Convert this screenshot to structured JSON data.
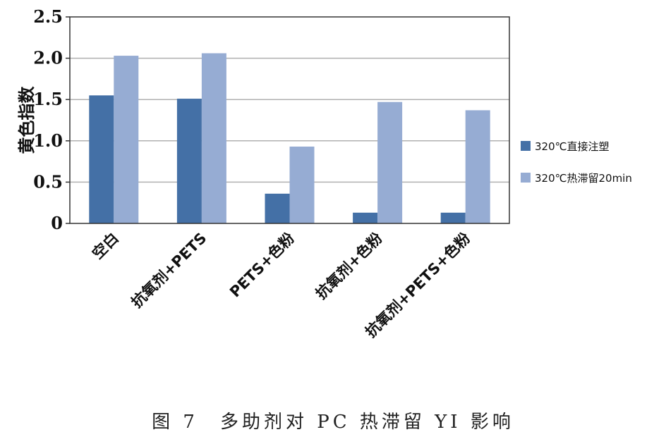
{
  "caption": "图 7　多助剂对 PC 热滞留 YI 影响",
  "colors": {
    "series1": "#4470a6",
    "series2": "#96acd3",
    "grid": "#b0b0b0",
    "frame": "#333333"
  },
  "chart_data": {
    "type": "bar",
    "title": "",
    "xlabel": "",
    "ylabel": "黄色指数",
    "ylim": [
      0,
      2.5
    ],
    "yticks": [
      0,
      0.5,
      1.0,
      1.5,
      2.0,
      2.5
    ],
    "ytick_labels": [
      "0",
      "0.5",
      "1.0",
      "1.5",
      "2.0",
      "2.5"
    ],
    "grid": true,
    "legend_position": "right",
    "categories": [
      "空白",
      "抗氧剂+PETS",
      "PETS+色粉",
      "抗氧剂+色粉",
      "抗氧剂+PETS+色粉"
    ],
    "series": [
      {
        "name": "320℃直接注塑",
        "values": [
          1.55,
          1.51,
          0.36,
          0.13,
          0.13
        ]
      },
      {
        "name": "320℃热滞留20min",
        "values": [
          2.03,
          2.06,
          0.93,
          1.47,
          1.37
        ]
      }
    ]
  }
}
